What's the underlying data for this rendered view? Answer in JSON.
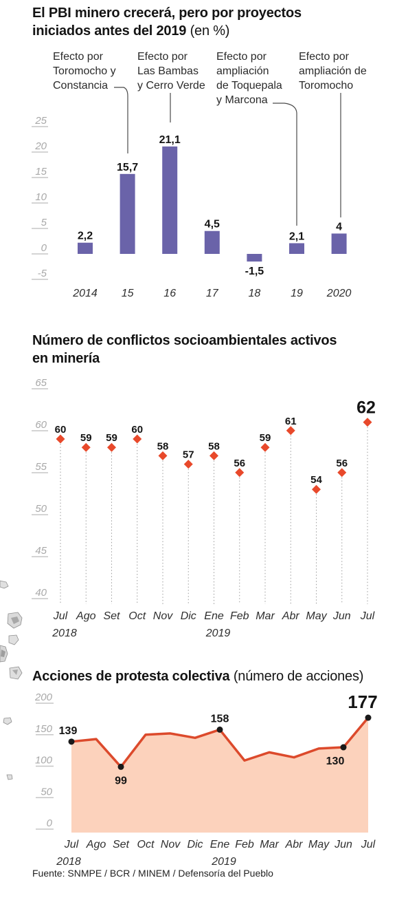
{
  "footer": {
    "source": "Fuente: SNMPE / BCR / MINEM / Defensoría del Pueblo"
  },
  "chart_data": [
    {
      "type": "bar",
      "title_lines": [
        "El PBI minero crecerá, pero por proyectos",
        "iniciados antes del 2019"
      ],
      "subtitle": "(en %)",
      "categories": [
        "2014",
        "15",
        "16",
        "17",
        "18",
        "19",
        "2020"
      ],
      "values": [
        2.2,
        15.7,
        21.1,
        4.5,
        -1.5,
        2.1,
        4
      ],
      "value_labels": [
        "2,2",
        "15,7",
        "21,1",
        "4,5",
        "-1,5",
        "2,1",
        "4"
      ],
      "yticks": [
        25,
        20,
        15,
        10,
        5,
        0,
        -5
      ],
      "ylim": [
        -5,
        25
      ],
      "bar_color": "#6a63a9",
      "grid": false,
      "annotations": [
        {
          "lines": [
            "Efecto por",
            "Toromocho y",
            "Constancia"
          ],
          "target_category": "15"
        },
        {
          "lines": [
            "Efecto por",
            "Las Bambas",
            "y Cerro Verde"
          ],
          "target_category": "16"
        },
        {
          "lines": [
            "Efecto por",
            "ampliación",
            "de Toquepala",
            "y Marcona"
          ],
          "target_category": "19"
        },
        {
          "lines": [
            "Efecto por",
            "ampliación de",
            "Toromocho"
          ],
          "target_category": "2020"
        }
      ]
    },
    {
      "type": "scatter",
      "title_lines": [
        "Número de conflictos socioambientales activos",
        "en minería"
      ],
      "x": [
        "Jul",
        "Ago",
        "Set",
        "Oct",
        "Nov",
        "Dic",
        "Ene",
        "Feb",
        "Mar",
        "Abr",
        "May",
        "Jun",
        "Jul"
      ],
      "x_years": [
        {
          "label": "2018",
          "index": 0
        },
        {
          "label": "2019",
          "index": 6
        }
      ],
      "values": [
        60,
        59,
        59,
        60,
        58,
        57,
        58,
        56,
        59,
        61,
        54,
        56,
        62
      ],
      "yticks": [
        65,
        60,
        55,
        50,
        45,
        40
      ],
      "ylim": [
        40,
        65
      ],
      "marker": "diamond",
      "marker_color": "#e8492b",
      "stem_color": "#9b9b9b",
      "highlight_last_value": "62"
    },
    {
      "type": "area",
      "title_bold": "Acciones de protesta colectiva",
      "subtitle": "(número de acciones)",
      "x": [
        "Jul",
        "Ago",
        "Set",
        "Oct",
        "Nov",
        "Dic",
        "Ene",
        "Feb",
        "Mar",
        "Abr",
        "May",
        "Jun",
        "Jul"
      ],
      "x_years": [
        {
          "label": "2018",
          "index": 0
        },
        {
          "label": "2019",
          "index": 6
        }
      ],
      "values": [
        139,
        143,
        99,
        150,
        152,
        145,
        158,
        109,
        122,
        114,
        128,
        130,
        177
      ],
      "labeled_points": [
        {
          "index": 0,
          "label": "139",
          "position": "above"
        },
        {
          "index": 2,
          "label": "99",
          "position": "below"
        },
        {
          "index": 6,
          "label": "158",
          "position": "above"
        },
        {
          "index": 11,
          "label": "130",
          "position": "below"
        },
        {
          "index": 12,
          "label": "177",
          "position": "above",
          "emphasis": true
        }
      ],
      "yticks": [
        200,
        150,
        100,
        50,
        0
      ],
      "ylim": [
        0,
        200
      ],
      "line_color": "#dc4a2c",
      "area_color": "#fcd2bc",
      "dot_color": "#1a1a1a"
    }
  ]
}
